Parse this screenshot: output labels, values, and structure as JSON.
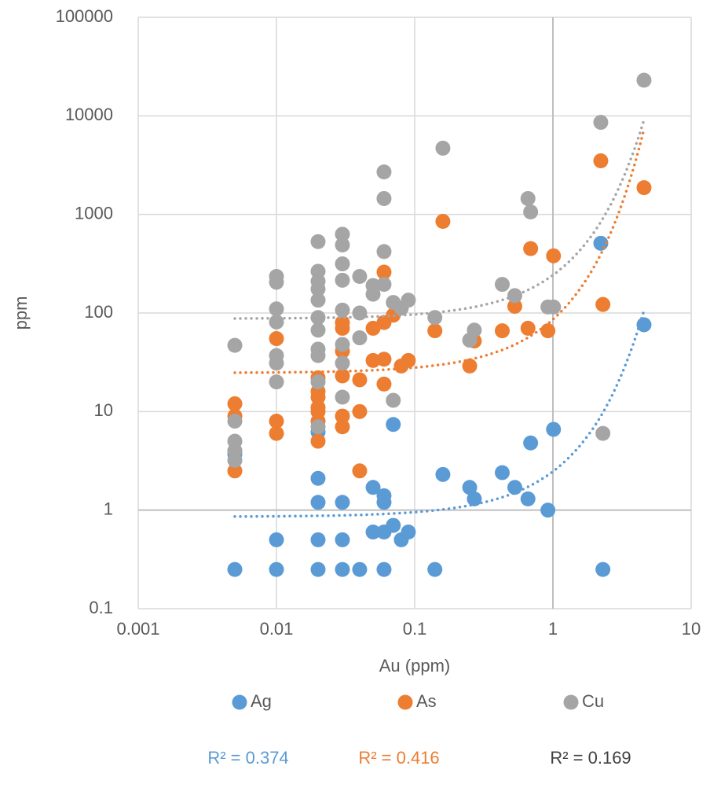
{
  "chart_data": {
    "type": "scatter",
    "x_label": "Au (ppm)",
    "y_label": "ppm",
    "xlim": [
      0.001,
      10
    ],
    "ylim": [
      0.1,
      100000
    ],
    "xticks": [
      0.001,
      0.01,
      0.1,
      1,
      10
    ],
    "yticks": [
      0.1,
      1,
      10,
      100,
      1000,
      10000,
      100000
    ],
    "x_log": true,
    "y_log": true,
    "grid": true,
    "axis_cross": {
      "x": 1,
      "y": 1
    },
    "trendline": "exponential",
    "legend": "bottom",
    "series": [
      {
        "name": "Ag",
        "color": "#5b9bd5",
        "trendline_label": "R² = 0.374",
        "trendline_label_color": "#5b9bd5",
        "x": [
          0.005,
          0.01,
          0.02,
          0.03,
          0.04,
          0.06,
          0.14,
          2.3,
          0.01,
          0.02,
          0.03,
          0.05,
          0.06,
          0.07,
          0.08,
          0.09,
          0.02,
          0.03,
          0.06,
          0.06,
          0.05,
          0.02,
          0.16,
          0.25,
          0.27,
          0.43,
          0.53,
          0.66,
          0.92,
          0.07,
          0.69,
          1.01,
          2.22,
          4.56,
          0.005,
          0.005,
          0.02
        ],
        "values": [
          0.25,
          0.25,
          0.25,
          0.25,
          0.25,
          0.25,
          0.25,
          0.25,
          0.5,
          0.5,
          0.5,
          0.6,
          0.6,
          0.7,
          0.5,
          0.6,
          1.2,
          1.2,
          1.2,
          1.4,
          1.7,
          2.1,
          2.3,
          1.7,
          1.3,
          2.4,
          1.7,
          1.3,
          1,
          7.4,
          4.8,
          6.6,
          510,
          76,
          3.7,
          4,
          6.2
        ]
      },
      {
        "name": "As",
        "color": "#ed7d31",
        "trendline_label": "R² = 0.416",
        "trendline_label_color": "#ed7d31",
        "x": [
          0.005,
          0.005,
          0.005,
          0.01,
          0.01,
          0.01,
          0.02,
          0.02,
          0.02,
          0.02,
          0.02,
          0.02,
          0.02,
          0.03,
          0.03,
          0.03,
          0.03,
          0.03,
          0.03,
          0.04,
          0.04,
          0.04,
          0.05,
          0.05,
          0.06,
          0.06,
          0.06,
          0.06,
          0.07,
          0.08,
          0.09,
          0.14,
          0.16,
          0.25,
          0.27,
          0.43,
          0.53,
          0.66,
          0.69,
          0.92,
          1.01,
          2.22,
          2.3,
          4.56
        ],
        "values": [
          2.5,
          9,
          12,
          6,
          8,
          55,
          5,
          8,
          10,
          11,
          14,
          16,
          22,
          7,
          9,
          23,
          41,
          70,
          80,
          10,
          21,
          2.5,
          33,
          70,
          34,
          19,
          80,
          260,
          95,
          29,
          33,
          66,
          850,
          29,
          52,
          66,
          117,
          70,
          450,
          66,
          380,
          3500,
          122,
          1870
        ]
      },
      {
        "name": "Cu",
        "color": "#a5a5a5",
        "trendline_label": "R² = 0.169",
        "trendline_label_color": "#404040",
        "x": [
          0.005,
          0.005,
          0.005,
          0.005,
          0.005,
          0.01,
          0.01,
          0.01,
          0.01,
          0.01,
          0.01,
          0.01,
          0.02,
          0.02,
          0.02,
          0.02,
          0.02,
          0.02,
          0.02,
          0.02,
          0.02,
          0.02,
          0.02,
          0.03,
          0.03,
          0.03,
          0.03,
          0.03,
          0.03,
          0.03,
          0.03,
          0.04,
          0.04,
          0.04,
          0.05,
          0.05,
          0.06,
          0.06,
          0.06,
          0.06,
          0.07,
          0.07,
          0.08,
          0.09,
          0.14,
          0.16,
          0.25,
          0.27,
          0.43,
          0.53,
          0.66,
          0.69,
          0.92,
          1.01,
          2.22,
          2.3,
          4.56
        ],
        "values": [
          47,
          8,
          5,
          4,
          3.2,
          235,
          205,
          110,
          81,
          37,
          31,
          20,
          530,
          265,
          210,
          175,
          135,
          90,
          67,
          43,
          37,
          20,
          7,
          630,
          490,
          315,
          215,
          107,
          48,
          31,
          14,
          235,
          100,
          56,
          190,
          155,
          2700,
          1450,
          420,
          195,
          128,
          13,
          112,
          135,
          90,
          4700,
          53,
          67,
          195,
          150,
          1450,
          1060,
          115,
          115,
          8600,
          6,
          23000
        ]
      }
    ]
  }
}
